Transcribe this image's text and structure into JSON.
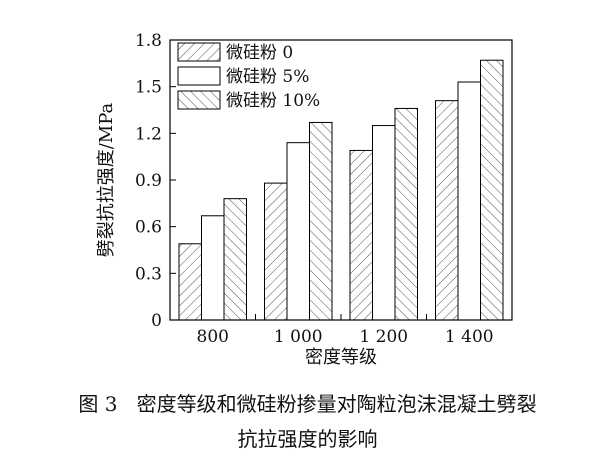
{
  "figure": {
    "label": "图 3",
    "title_line1": "密度等级和微硅粉掺量对陶粒泡沫混凝土劈裂",
    "title_line2": "抗拉强度的影响"
  },
  "chart_data": {
    "type": "bar",
    "categories": [
      "800",
      "1 000",
      "1 200",
      "1 400"
    ],
    "series": [
      {
        "name": "微硅粉 0",
        "values": [
          0.49,
          0.88,
          1.09,
          1.41
        ],
        "pattern": "hatch-left"
      },
      {
        "name": "微硅粉 5%",
        "values": [
          0.67,
          1.14,
          1.25,
          1.53
        ],
        "pattern": "none"
      },
      {
        "name": "微硅粉 10%",
        "values": [
          0.78,
          1.27,
          1.36,
          1.67
        ],
        "pattern": "hatch-right"
      }
    ],
    "xlabel": "密度等级",
    "ylabel": "劈裂抗拉强度/MPa",
    "ylim": [
      0,
      1.8
    ],
    "yticks": [
      "0",
      "0.3",
      "0.6",
      "0.9",
      "1.2",
      "1.5",
      "1.8"
    ],
    "legend_position": "top-left",
    "grid": false,
    "bar_stroke": "#000000",
    "bar_fill": "#ffffff"
  }
}
